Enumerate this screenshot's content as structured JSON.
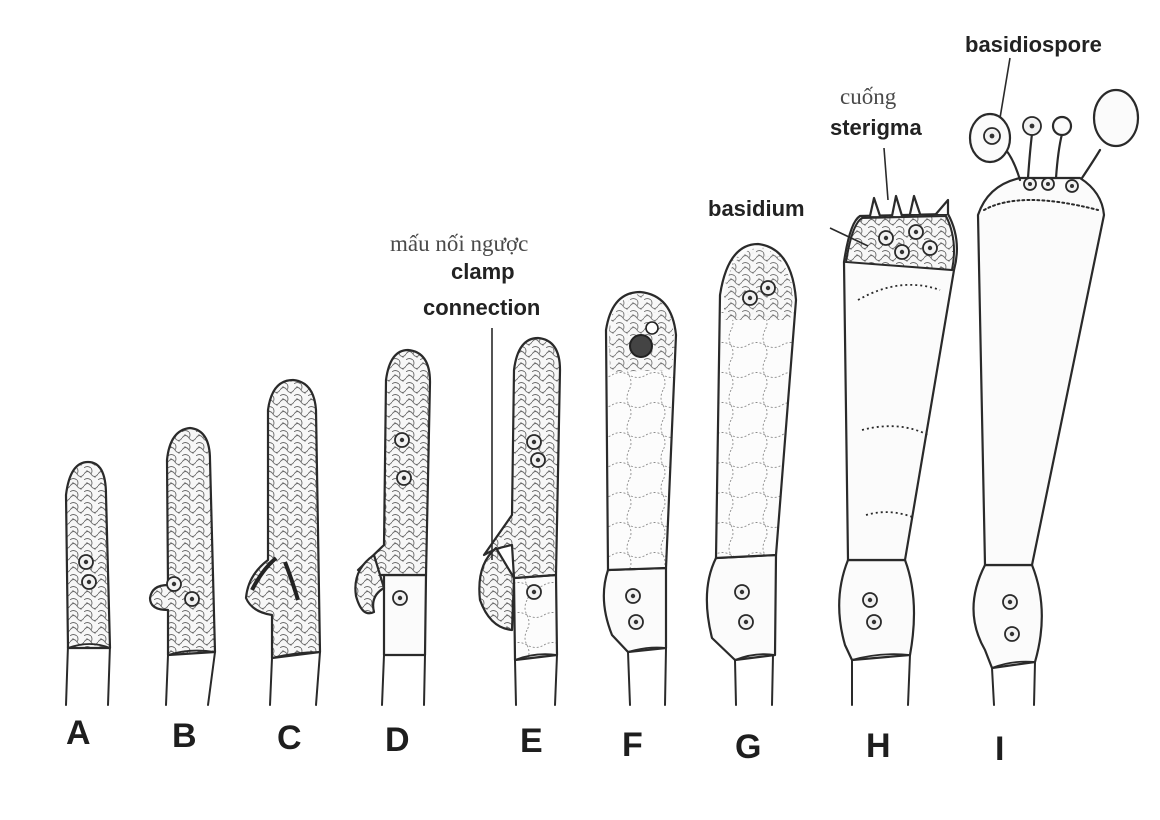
{
  "stages": [
    "A",
    "B",
    "C",
    "D",
    "E",
    "F",
    "G",
    "H",
    "I"
  ],
  "labels": {
    "basidiospore": "basidiospore",
    "sterigma_vi": "cuống",
    "sterigma": "sterigma",
    "basidium": "basidium",
    "clamp_vi": "mấu nối ngược",
    "clamp_line1": "clamp",
    "clamp_line2": "connection"
  }
}
